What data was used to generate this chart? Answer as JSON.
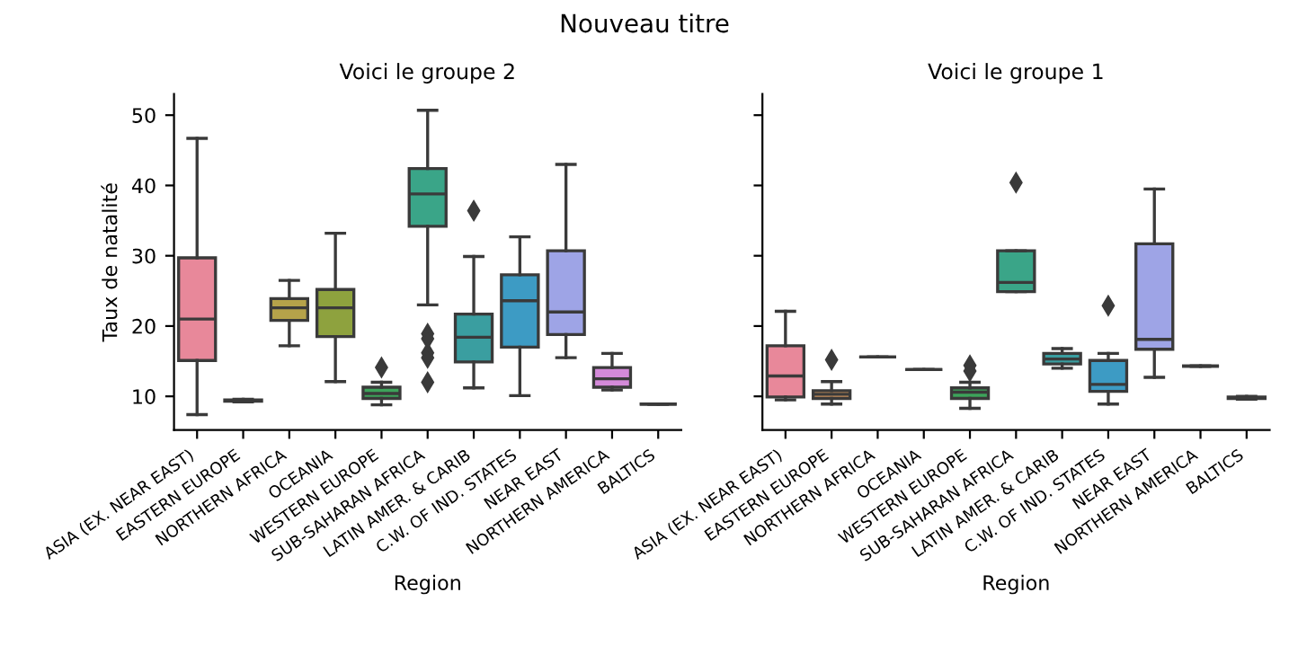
{
  "chart_data": [
    {
      "type": "box",
      "title": "Voici le groupe 2",
      "annotations": [
        "Nouveau titre"
      ],
      "xlabel": "Region",
      "ylabel": "Taux de natalité",
      "ylim": [
        5.2,
        53
      ],
      "yticks": [
        10,
        20,
        30,
        40,
        50
      ],
      "grid": false,
      "legend": false,
      "marker": "diamond",
      "categories": [
        "ASIA (EX. NEAR EAST)",
        "EASTERN EUROPE",
        "NORTHERN AFRICA",
        "OCEANIA",
        "WESTERN EUROPE",
        "SUB-SAHARAN AFRICA",
        "LATIN AMER. & CARIB",
        "C.W. OF IND. STATES",
        "NEAR EAST",
        "NORTHERN AMERICA",
        "BALTICS"
      ],
      "colors": [
        "#e8889a",
        "#c8915c",
        "#b5a24a",
        "#8ea23e",
        "#3da35a",
        "#3aa588",
        "#3a9ea0",
        "#3d9bc4",
        "#9ea4e6",
        "#d48ad9",
        null
      ],
      "boxes": [
        {
          "low": 7.4,
          "q1": 15.1,
          "median": 21.0,
          "q3": 29.7,
          "high": 46.7
        },
        {
          "low": 9.2,
          "q1": 9.3,
          "median": 9.4,
          "q3": 9.5,
          "high": 9.6
        },
        {
          "low": 17.2,
          "q1": 20.8,
          "median": 22.6,
          "q3": 23.9,
          "high": 26.5
        },
        {
          "low": 12.1,
          "q1": 18.5,
          "median": 22.6,
          "q3": 25.2,
          "high": 33.2
        },
        {
          "low": 8.8,
          "q1": 9.7,
          "median": 10.4,
          "q3": 11.3,
          "high": 12.0,
          "outliers": [
            14.1
          ]
        },
        {
          "low": 23.0,
          "q1": 34.2,
          "median": 38.8,
          "q3": 42.4,
          "high": 50.7,
          "outliers": [
            18.9,
            18.2,
            16.2,
            15.5,
            12.0
          ]
        },
        {
          "low": 11.2,
          "q1": 14.9,
          "median": 18.4,
          "q3": 21.7,
          "high": 29.9,
          "outliers": [
            36.4
          ]
        },
        {
          "low": 10.1,
          "q1": 17.0,
          "median": 23.6,
          "q3": 27.3,
          "high": 32.7
        },
        {
          "low": 15.5,
          "q1": 18.8,
          "median": 22.0,
          "q3": 30.7,
          "high": 43.0
        },
        {
          "low": 10.9,
          "q1": 11.3,
          "median": 12.5,
          "q3": 14.1,
          "high": 16.1
        },
        {
          "low": 8.9,
          "q1": 8.9,
          "median": 8.9,
          "q3": 8.9,
          "high": 8.9
        }
      ]
    },
    {
      "type": "box",
      "title": "Voici le groupe 1",
      "xlabel": "Region",
      "ylim": [
        5.2,
        53
      ],
      "yticks": [
        {
          "value": 10,
          "label": null
        },
        {
          "value": 20,
          "label": null
        },
        {
          "value": 30,
          "label": null
        },
        {
          "value": 40,
          "label": null
        },
        {
          "value": 50,
          "label": null
        }
      ],
      "tick_labels": "x",
      "grid": false,
      "legend": false,
      "marker": "diamond",
      "categories": [
        "ASIA (EX. NEAR EAST)",
        "EASTERN EUROPE",
        "NORTHERN AFRICA",
        "OCEANIA",
        "WESTERN EUROPE",
        "SUB-SAHARAN AFRICA",
        "LATIN AMER. & CARIB",
        "C.W. OF IND. STATES",
        "NEAR EAST",
        "NORTHERN AMERICA",
        "BALTICS"
      ],
      "colors": [
        "#e8889a",
        "#c8915c",
        null,
        null,
        "#3da35a",
        "#3aa588",
        "#3a9ea0",
        "#3d9bc4",
        "#9ea4e6",
        null,
        "#e07fb8"
      ],
      "boxes": [
        {
          "low": 9.5,
          "q1": 9.9,
          "median": 12.9,
          "q3": 17.2,
          "high": 22.1
        },
        {
          "low": 8.9,
          "q1": 9.7,
          "median": 10.3,
          "q3": 10.8,
          "high": 12.1,
          "outliers": [
            15.2
          ]
        },
        {
          "low": 15.6,
          "q1": 15.6,
          "median": 15.6,
          "q3": 15.6,
          "high": 15.6
        },
        {
          "low": 13.8,
          "q1": 13.8,
          "median": 13.8,
          "q3": 13.8,
          "high": 13.8
        },
        {
          "low": 8.3,
          "q1": 9.7,
          "median": 10.6,
          "q3": 11.2,
          "high": 12.0,
          "outliers": [
            14.4,
            13.6
          ]
        },
        {
          "low": 24.9,
          "q1": 24.9,
          "median": 26.2,
          "q3": 30.7,
          "high": 30.7,
          "outliers": [
            40.4
          ]
        },
        {
          "low": 14.0,
          "q1": 14.6,
          "median": 15.3,
          "q3": 16.1,
          "high": 16.8
        },
        {
          "low": 8.9,
          "q1": 10.7,
          "median": 11.7,
          "q3": 15.1,
          "high": 16.1,
          "outliers": [
            22.9
          ]
        },
        {
          "low": 12.7,
          "q1": 16.7,
          "median": 18.1,
          "q3": 31.7,
          "high": 39.5
        },
        {
          "low": 14.3,
          "q1": 14.3,
          "median": 14.3,
          "q3": 14.3,
          "high": 14.3
        },
        {
          "low": 9.6,
          "q1": 9.7,
          "median": 9.8,
          "q3": 9.9,
          "high": 10.0
        }
      ]
    }
  ]
}
